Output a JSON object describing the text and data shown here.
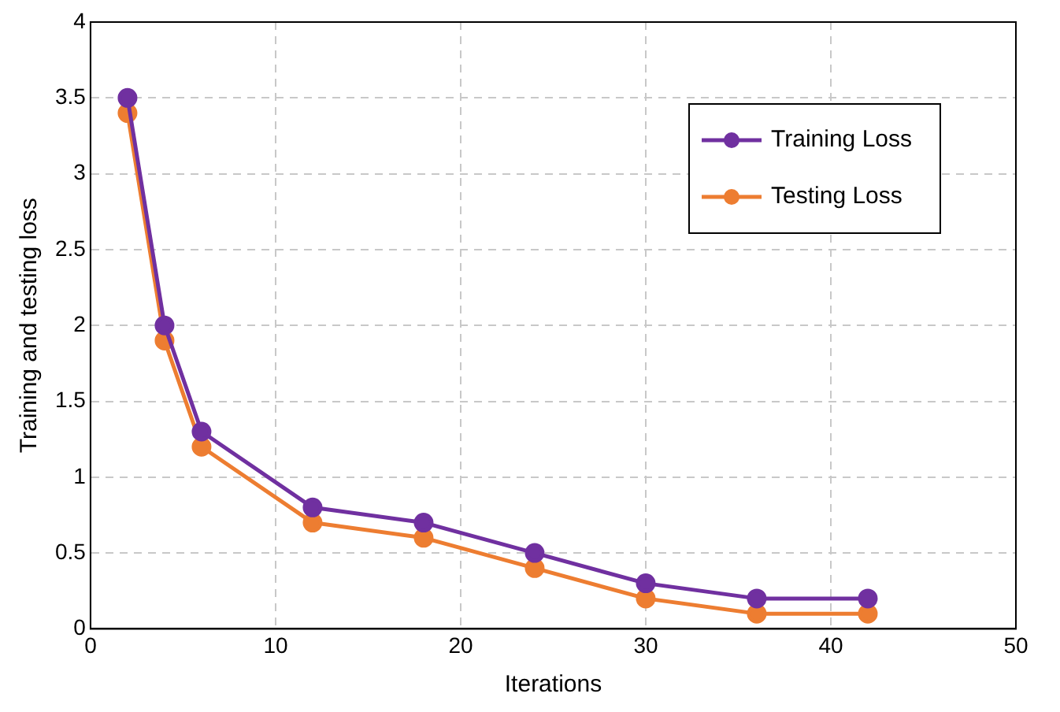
{
  "chart_data": {
    "type": "line",
    "xlabel": "Iterations",
    "ylabel": "Training and testing loss",
    "x": [
      2,
      4,
      6,
      12,
      18,
      24,
      30,
      36,
      42
    ],
    "series": [
      {
        "name": "Training Loss",
        "color": "#7030a0",
        "values": [
          3.5,
          2,
          1.3,
          0.8,
          0.7,
          0.5,
          0.3,
          0.2,
          0.2
        ]
      },
      {
        "name": "Testing Loss",
        "color": "#ed7d31",
        "values": [
          3.4,
          1.9,
          1.2,
          0.7,
          0.6,
          0.4,
          0.2,
          0.1,
          0.1
        ]
      }
    ],
    "xlim": [
      0,
      50
    ],
    "xticks": [
      0,
      10,
      20,
      30,
      40,
      50
    ],
    "ylim": [
      0,
      4
    ],
    "yticks": [
      0,
      0.5,
      1,
      1.5,
      2,
      2.5,
      3,
      3.5,
      4
    ],
    "grid": true,
    "legend": "top right",
    "marker": "circle",
    "line_style": "solid"
  }
}
